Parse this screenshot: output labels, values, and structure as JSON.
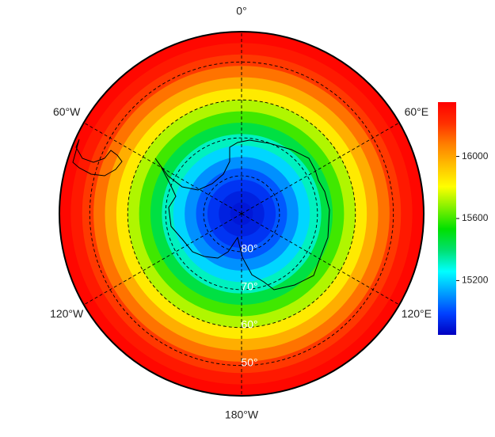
{
  "chart_data": {
    "type": "polar-contour",
    "field": {
      "lat": [
        -42,
        -45,
        -48,
        -51,
        -54,
        -57,
        -60,
        -63,
        -66,
        -69,
        -72,
        -75,
        -78,
        -81,
        -84,
        -87
      ],
      "values": [
        16330,
        16280,
        16200,
        16100,
        15980,
        15850,
        15720,
        15600,
        15450,
        15320,
        15200,
        15100,
        15020,
        14960,
        14920,
        14900
      ]
    },
    "meridians": [
      {
        "value": 0,
        "label": "0°"
      },
      {
        "value": 60,
        "label": "60°E"
      },
      {
        "value": 120,
        "label": "120°E"
      },
      {
        "value": 180,
        "label": "180°W"
      },
      {
        "value": -120,
        "label": "120°W"
      },
      {
        "value": -60,
        "label": "60°W"
      }
    ],
    "lat_circles": [
      {
        "value": -80,
        "label": "80°"
      },
      {
        "value": -70,
        "label": "70°"
      },
      {
        "value": -60,
        "label": "60°"
      },
      {
        "value": -50,
        "label": "50°"
      }
    ],
    "colorbar": {
      "clim": [
        14850,
        16350
      ],
      "ticks": [
        15200,
        15600,
        16000
      ],
      "colormap": [
        "#0000c0",
        "#0040ff",
        "#00a0ff",
        "#00ffff",
        "#00e070",
        "#00e000",
        "#80f000",
        "#ffff00",
        "#ffc000",
        "#ff8000",
        "#ff3000",
        "#ff0000"
      ]
    }
  }
}
